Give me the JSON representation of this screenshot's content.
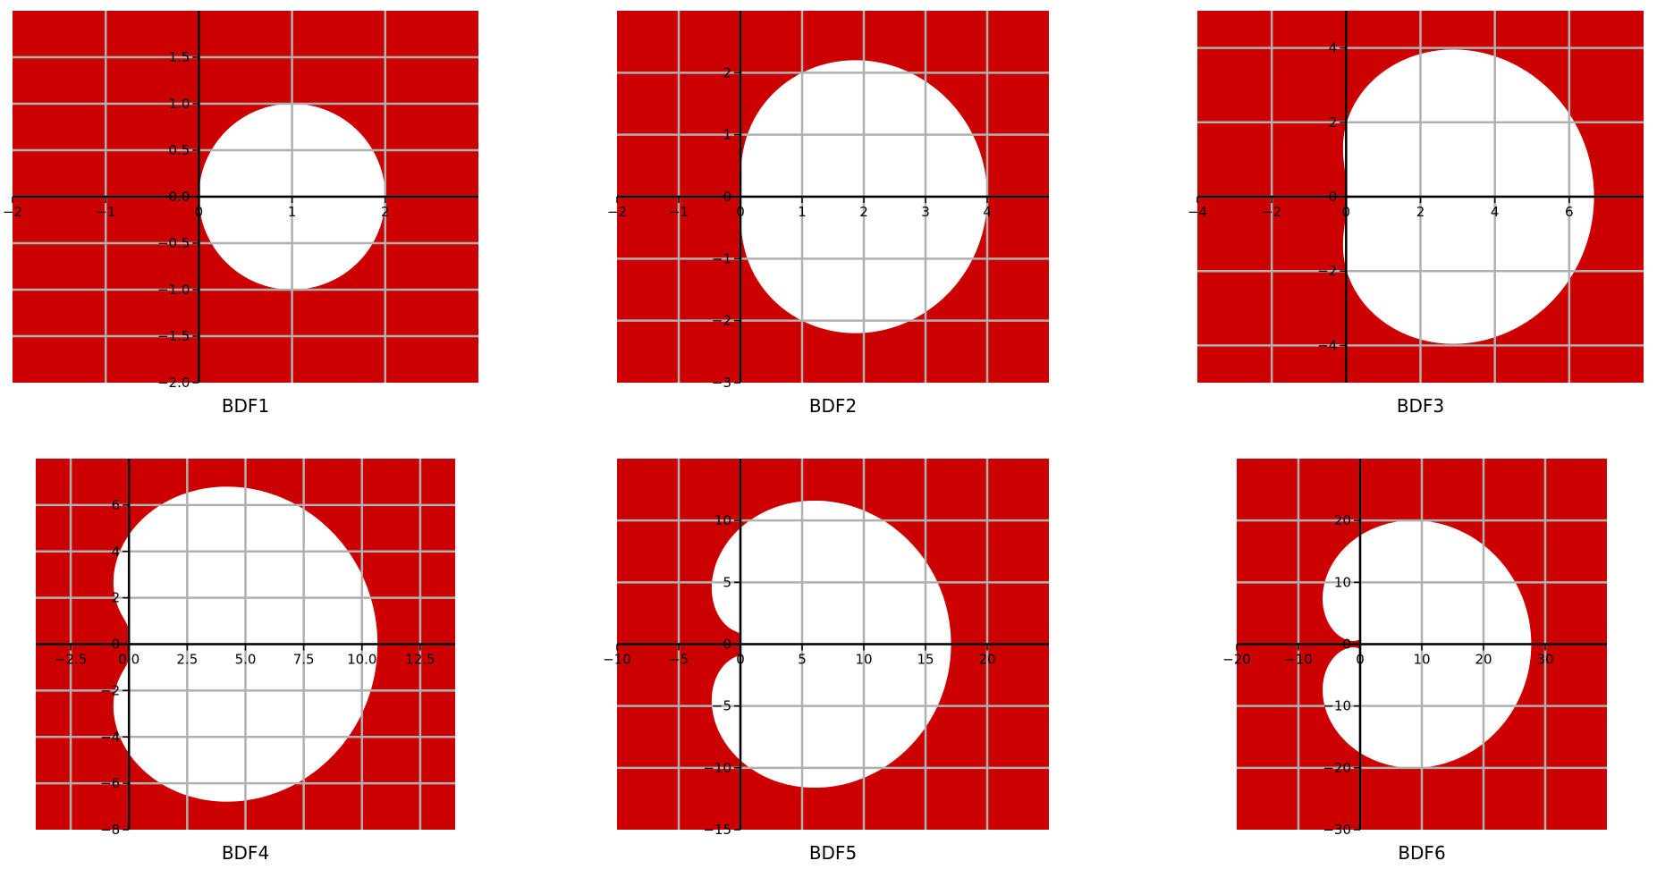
{
  "figure": {
    "background": "#ffffff",
    "colors": {
      "unstable_region": "#cc0000",
      "stable_region": "#ffffff",
      "grid": "#b0b0b0",
      "axis": "#000000"
    }
  },
  "chart_data": [
    {
      "type": "area",
      "title": "BDF1",
      "order": 1,
      "xlim": [
        -2,
        3
      ],
      "ylim": [
        -2,
        2
      ],
      "xticks": [
        -2,
        -1,
        0,
        1,
        2
      ],
      "xtick_labels": [
        "−2",
        "−1",
        "0",
        "1",
        "2"
      ],
      "yticks": [
        -2.0,
        -1.5,
        -1.0,
        -0.5,
        0.0,
        0.5,
        1.0,
        1.5
      ],
      "ytick_labels": [
        "−2.0",
        "−1.5",
        "−1.0",
        "−0.5",
        "0.0",
        "0.5",
        "1.0",
        "1.5"
      ],
      "xgrid": [
        -1,
        0,
        1,
        2
      ],
      "ygrid": [
        -1.5,
        -1.0,
        -0.5,
        0.0,
        0.5,
        1.0,
        1.5
      ],
      "grid": true,
      "boundary_extent": {
        "x_min": 0,
        "x_max": 2,
        "y_min": -1,
        "y_max": 1
      }
    },
    {
      "type": "area",
      "title": "BDF2",
      "order": 2,
      "xlim": [
        -2,
        5
      ],
      "ylim": [
        -3,
        3
      ],
      "xticks": [
        -2,
        -1,
        0,
        1,
        2,
        3,
        4
      ],
      "xtick_labels": [
        "−2",
        "−1",
        "0",
        "1",
        "2",
        "3",
        "4"
      ],
      "yticks": [
        -3,
        -2,
        -1,
        0,
        1,
        2
      ],
      "ytick_labels": [
        "−3",
        "−2",
        "−1",
        "0",
        "1",
        "2"
      ],
      "xgrid": [
        -1,
        0,
        1,
        2,
        3,
        4
      ],
      "ygrid": [
        -2,
        -1,
        0,
        1,
        2
      ],
      "grid": true,
      "boundary_extent": {
        "x_min": 0,
        "x_max": 4,
        "y_min": -2.2,
        "y_max": 2.2
      }
    },
    {
      "type": "area",
      "title": "BDF3",
      "order": 3,
      "xlim": [
        -4,
        8
      ],
      "ylim": [
        -5,
        5
      ],
      "xticks": [
        -4,
        -2,
        0,
        2,
        4,
        6
      ],
      "xtick_labels": [
        "−4",
        "−2",
        "0",
        "2",
        "4",
        "6"
      ],
      "yticks": [
        -4,
        -2,
        0,
        2,
        4
      ],
      "ytick_labels": [
        "−4",
        "−2",
        "0",
        "2",
        "4"
      ],
      "xgrid": [
        -2,
        0,
        2,
        4,
        6
      ],
      "ygrid": [
        -4,
        -2,
        0,
        2,
        4
      ],
      "grid": true,
      "boundary_extent": {
        "x_min": -0.1,
        "x_max": 6.7,
        "y_min": -3.9,
        "y_max": 3.9
      }
    },
    {
      "type": "area",
      "title": "BDF4",
      "order": 4,
      "xlim": [
        -4,
        14
      ],
      "ylim": [
        -8,
        8
      ],
      "xticks": [
        -2.5,
        0.0,
        2.5,
        5.0,
        7.5,
        10.0,
        12.5
      ],
      "xtick_labels": [
        "−2.5",
        "0.0",
        "2.5",
        "5.0",
        "7.5",
        "10.0",
        "12.5"
      ],
      "yticks": [
        -8,
        -6,
        -4,
        -2,
        0,
        2,
        4,
        6
      ],
      "ytick_labels": [
        "−8",
        "−6",
        "−4",
        "−2",
        "0",
        "2",
        "4",
        "6"
      ],
      "xgrid": [
        -2.5,
        0.0,
        2.5,
        5.0,
        7.5,
        10.0,
        12.5
      ],
      "ygrid": [
        -6,
        -4,
        -2,
        0,
        2,
        4,
        6
      ],
      "grid": true,
      "boundary_extent": {
        "x_min": -0.7,
        "x_max": 10.7,
        "y_min": -6.7,
        "y_max": 6.7
      }
    },
    {
      "type": "area",
      "title": "BDF5",
      "order": 5,
      "xlim": [
        -10,
        25
      ],
      "ylim": [
        -15,
        15
      ],
      "xticks": [
        -10,
        -5,
        0,
        5,
        10,
        15,
        20
      ],
      "xtick_labels": [
        "−10",
        "−5",
        "0",
        "5",
        "10",
        "15",
        "20"
      ],
      "yticks": [
        -15,
        -10,
        -5,
        0,
        5,
        10
      ],
      "ytick_labels": [
        "−15",
        "−10",
        "−5",
        "0",
        "5",
        "10"
      ],
      "xgrid": [
        -5,
        0,
        5,
        10,
        15,
        20
      ],
      "ygrid": [
        -10,
        -5,
        0,
        5,
        10
      ],
      "grid": true,
      "boundary_extent": {
        "x_min": -2.2,
        "x_max": 17,
        "y_min": -11.5,
        "y_max": 11.5
      }
    },
    {
      "type": "area",
      "title": "BDF6",
      "order": 6,
      "xlim": [
        -20,
        40
      ],
      "ylim": [
        -30,
        30
      ],
      "xticks": [
        -20,
        -10,
        0,
        10,
        20,
        30
      ],
      "xtick_labels": [
        "−20",
        "−10",
        "0",
        "10",
        "20",
        "30"
      ],
      "yticks": [
        -30,
        -20,
        -10,
        0,
        10,
        20
      ],
      "ytick_labels": [
        "−30",
        "−20",
        "−10",
        "0",
        "10",
        "20"
      ],
      "xgrid": [
        -10,
        0,
        10,
        20,
        30
      ],
      "ygrid": [
        -20,
        -10,
        0,
        10,
        20
      ],
      "grid": true,
      "boundary_extent": {
        "x_min": -6,
        "x_max": 28,
        "y_min": -20,
        "y_max": 20
      }
    }
  ]
}
